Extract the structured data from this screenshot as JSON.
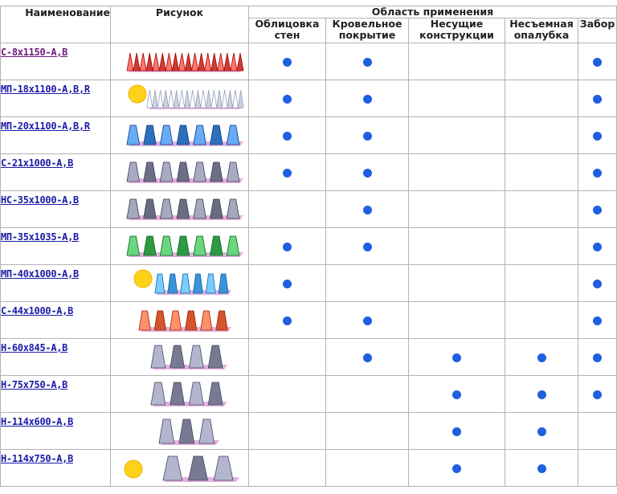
{
  "table": {
    "headers": {
      "name": "Наименование",
      "picture": "Рисунок",
      "area": "Область применения",
      "areas": [
        "Облицовка стен",
        "Кровельное покрытие",
        "Несущие конструкции",
        "Несъемная опалубка",
        "Забор"
      ],
      "areas_lines": [
        [
          "Облицовка",
          "стен"
        ],
        [
          "Кровельное",
          "покрытие"
        ],
        [
          "Несущие",
          "конструкции"
        ],
        [
          "Несъемная",
          "опалубка"
        ],
        [
          "Забор",
          ""
        ]
      ]
    },
    "dot_color": "#1f5fe0",
    "rows": [
      {
        "name": "С-8x1150-А,В",
        "visited": true,
        "sheet_color": "#d23a33",
        "profile": "small",
        "badge": false,
        "uses": [
          true,
          true,
          false,
          false,
          true
        ]
      },
      {
        "name": "МП-18x1100-А,В,R",
        "visited": false,
        "sheet_color": "#c9d3e6",
        "profile": "small",
        "badge": true,
        "uses": [
          true,
          true,
          false,
          false,
          true
        ]
      },
      {
        "name": "МП-20x1100-А,В,R",
        "visited": false,
        "sheet_color": "#2d6fb8",
        "profile": "trap",
        "badge": false,
        "uses": [
          true,
          true,
          false,
          false,
          true
        ]
      },
      {
        "name": "С-21x1000-А,В",
        "visited": false,
        "sheet_color": "#6d6f86",
        "profile": "trap",
        "badge": false,
        "uses": [
          true,
          true,
          false,
          false,
          true
        ]
      },
      {
        "name": "НС-35x1000-А,В",
        "visited": false,
        "sheet_color": "#6a6c80",
        "profile": "trap",
        "badge": false,
        "uses": [
          false,
          true,
          false,
          false,
          true
        ]
      },
      {
        "name": "МП-35x1035-А,В",
        "visited": false,
        "sheet_color": "#2e9a44",
        "profile": "trap",
        "badge": false,
        "uses": [
          true,
          true,
          false,
          false,
          true
        ]
      },
      {
        "name": "МП-40x1000-А,В",
        "visited": false,
        "sheet_color": "#3c93d8",
        "profile": "wave",
        "badge": true,
        "uses": [
          true,
          false,
          false,
          false,
          true
        ]
      },
      {
        "name": "С-44x1000-А,В",
        "visited": false,
        "sheet_color": "#d2552e",
        "profile": "wave",
        "badge": false,
        "uses": [
          true,
          true,
          false,
          false,
          true
        ]
      },
      {
        "name": "Н-60x845-А,В",
        "visited": false,
        "sheet_color": "#777a92",
        "profile": "deep",
        "badge": false,
        "uses": [
          false,
          true,
          true,
          true,
          true
        ]
      },
      {
        "name": "Н-75x750-А,В",
        "visited": false,
        "sheet_color": "#777a92",
        "profile": "deep",
        "badge": false,
        "uses": [
          false,
          false,
          true,
          true,
          true
        ]
      },
      {
        "name": "Н-114x600-А,В",
        "visited": false,
        "sheet_color": "#777a92",
        "profile": "tall",
        "badge": false,
        "uses": [
          false,
          false,
          true,
          true,
          false
        ]
      },
      {
        "name": "Н-114x750-А,В",
        "visited": false,
        "sheet_color": "#777a92",
        "profile": "tall",
        "badge": true,
        "uses": [
          false,
          false,
          true,
          true,
          false
        ]
      }
    ]
  }
}
